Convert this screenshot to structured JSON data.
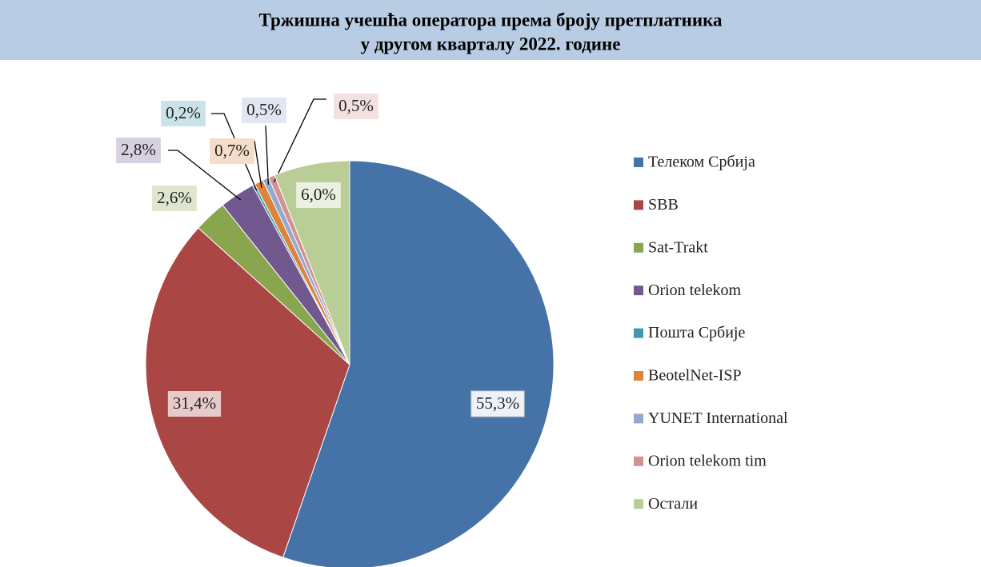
{
  "chart_data": {
    "type": "pie",
    "title": [
      "Тржишна учешћа оператора према броју претплатника",
      "у другом кварталу 2022. године"
    ],
    "categories": [
      "Телеком Србија",
      "SBB",
      "Sat-Trakt",
      "Orion telekom",
      "Пошта Србије",
      "BeotelNet-ISP",
      "YUNET International",
      "Orion telekom tim",
      "Остали"
    ],
    "values": [
      55.3,
      31.4,
      2.6,
      2.8,
      0.2,
      0.7,
      0.5,
      0.5,
      6.0
    ],
    "value_labels": [
      "55,3%",
      "31,4%",
      "2,6%",
      "2,8%",
      "0,2%",
      "0,7%",
      "0,5%",
      "0,5%",
      "6,0%"
    ],
    "colors": [
      "#4572a7",
      "#aa4643",
      "#89a54e",
      "#71588f",
      "#4198af",
      "#db843d",
      "#93a9cf",
      "#d19392",
      "#b9cd96"
    ],
    "legend": "right"
  }
}
